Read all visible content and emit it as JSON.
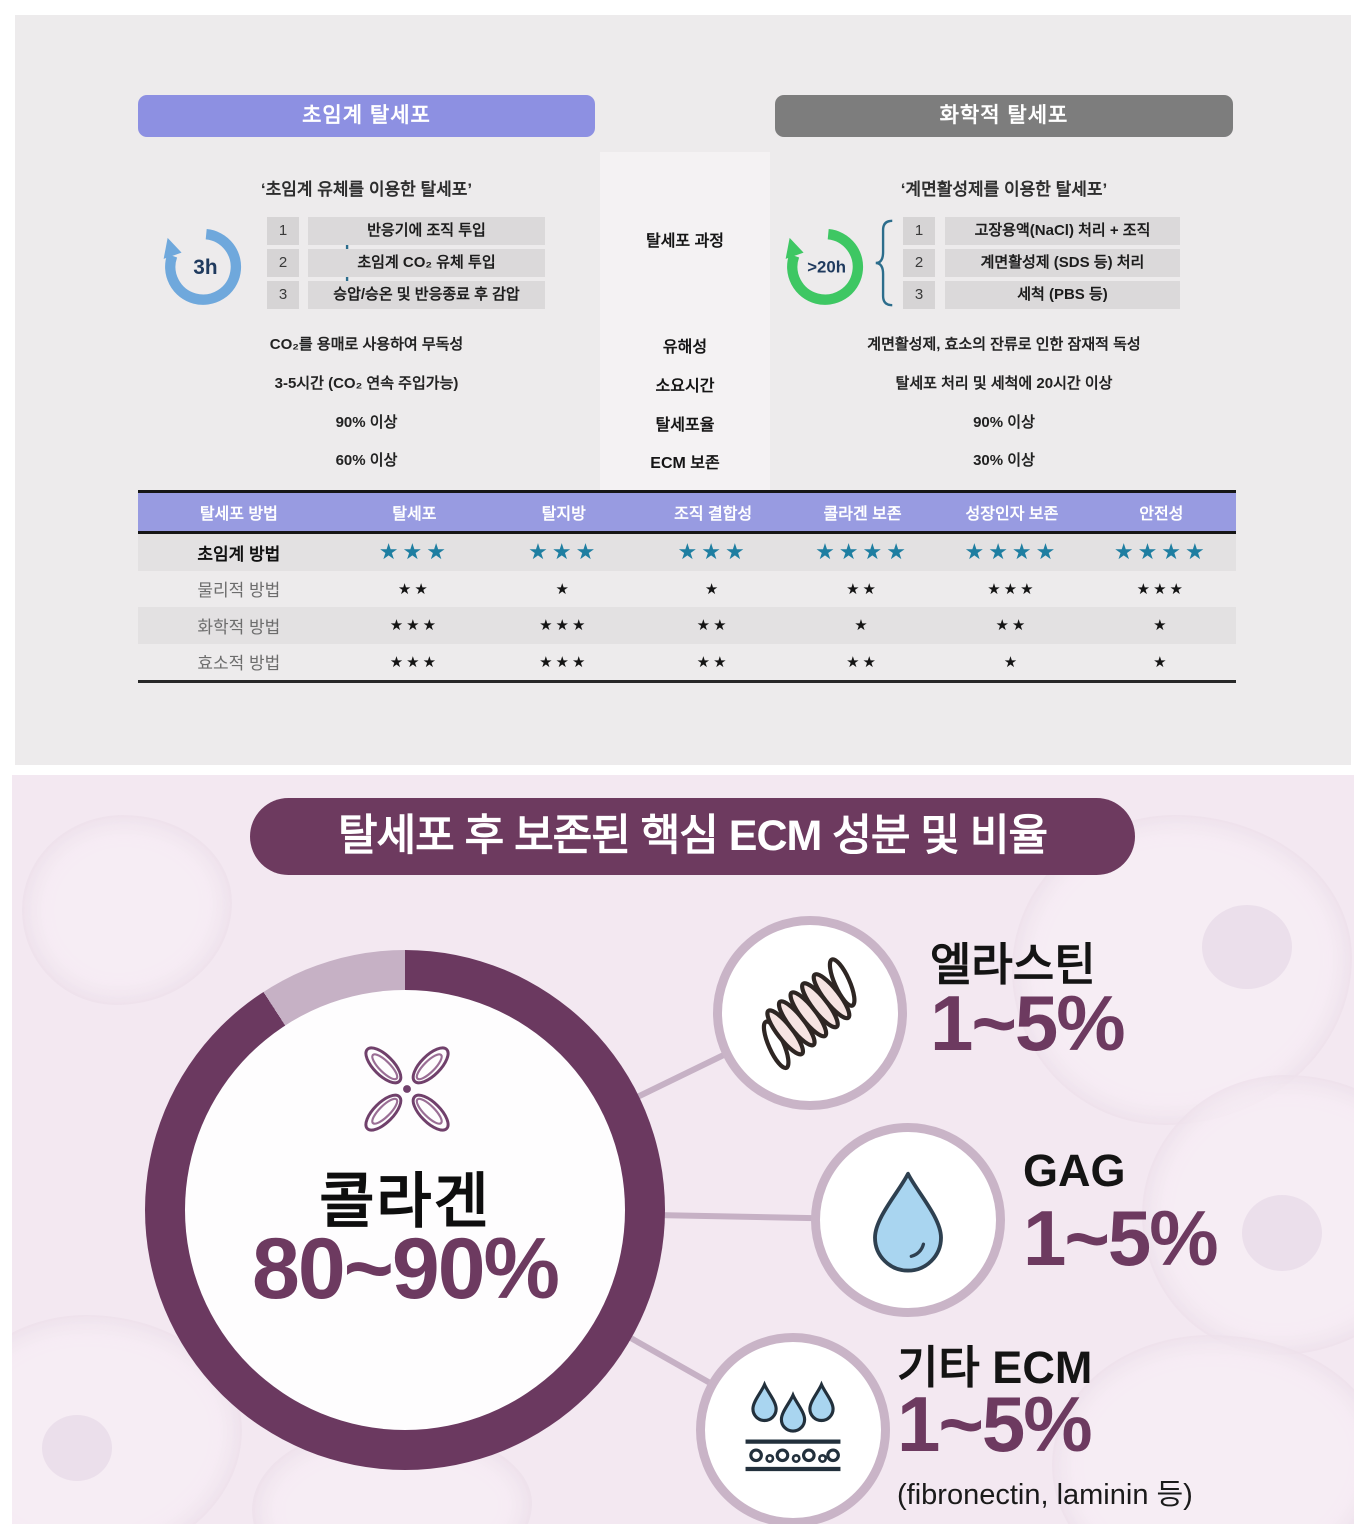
{
  "top": {
    "left": {
      "header": "초임계 탈세포",
      "subtitle": "‘초임계 유체를 이용한 탈세포’",
      "cycle_time": "3h",
      "steps": [
        {
          "num": "1",
          "text": "반응기에 조직 투입"
        },
        {
          "num": "2",
          "text": "초임계 CO₂ 유체 투입"
        },
        {
          "num": "3",
          "text": "승압/승온 및 반응종료 후 감압"
        }
      ],
      "values": [
        "CO₂를 용매로 사용하여 무독성",
        "3-5시간 (CO₂ 연속 주입가능)",
        "90% 이상",
        "60% 이상"
      ]
    },
    "middle": {
      "labels": [
        "탈세포 과정",
        "유해성",
        "소요시간",
        "탈세포율",
        "ECM 보존"
      ]
    },
    "right": {
      "header": "화학적 탈세포",
      "subtitle": "‘계면활성제를 이용한 탈세포’",
      "cycle_time": ">20h",
      "steps": [
        {
          "num": "1",
          "text": "고장용액(NaCl) 처리 + 조직"
        },
        {
          "num": "2",
          "text": "계면활성제 (SDS 등) 처리"
        },
        {
          "num": "3",
          "text": "세척 (PBS 등)"
        }
      ],
      "values": [
        "계면활성제, 효소의 잔류로 인한 잠재적 독성",
        "탈세포 처리 및 세척에 20시간 이상",
        "90% 이상",
        "30% 이상"
      ]
    },
    "table": {
      "headers": [
        "탈세포 방법",
        "탈세포",
        "탈지방",
        "조직 결합성",
        "콜라겐 보존",
        "성장인자 보존",
        "안전성"
      ],
      "rows": [
        {
          "label": "초임계 방법",
          "stars": [
            3,
            3,
            3,
            4,
            4,
            4
          ],
          "highlight": true,
          "shade": true
        },
        {
          "label": "물리적 방법",
          "stars": [
            2,
            1,
            1,
            2,
            3,
            3
          ],
          "highlight": false,
          "shade": false
        },
        {
          "label": "화학적 방법",
          "stars": [
            3,
            3,
            2,
            1,
            2,
            1
          ],
          "highlight": false,
          "shade": true
        },
        {
          "label": "효소적 방법",
          "stars": [
            3,
            3,
            2,
            2,
            1,
            1
          ],
          "highlight": false,
          "shade": false
        }
      ]
    }
  },
  "bottom": {
    "title": "탈세포 후 보존된 핵심 ECM 성분 및 비율",
    "main": {
      "label": "콜라겐",
      "value": "80~90%"
    },
    "items": [
      {
        "label": "엘라스틴",
        "value": "1~5%"
      },
      {
        "label": "GAG",
        "value": "1~5%"
      },
      {
        "label": "기타 ECM",
        "value": "1~5%",
        "note": "(fibronectin, laminin 등)"
      }
    ]
  },
  "chart_data": {
    "type": "pie",
    "title": "탈세포 후 보존된 핵심 ECM 성분 및 비율",
    "labels": [
      "콜라겐",
      "엘라스틴",
      "GAG",
      "기타 ECM"
    ],
    "values": [
      "80~90%",
      "1~5%",
      "1~5%",
      "1~5%"
    ],
    "notes": "기타 ECM = fibronectin, laminin 등; 도넛 비율 약 90% 진한 자주색 / 10% 연한 회보라",
    "colors": {
      "main_ring": "#6b3960",
      "minor_ring": "#c6b1c5"
    }
  },
  "colors": {
    "left_header_bg": "#8d90e2",
    "right_header_bg": "#7d7d7d",
    "table_header_bg": "#989be1",
    "teal_stars": "#1e7ea1",
    "cycle_left": "#6fa8dc",
    "cycle_right": "#3ec763",
    "plum": "#6d3a5f",
    "pink_bg": "#f3e8f1"
  }
}
